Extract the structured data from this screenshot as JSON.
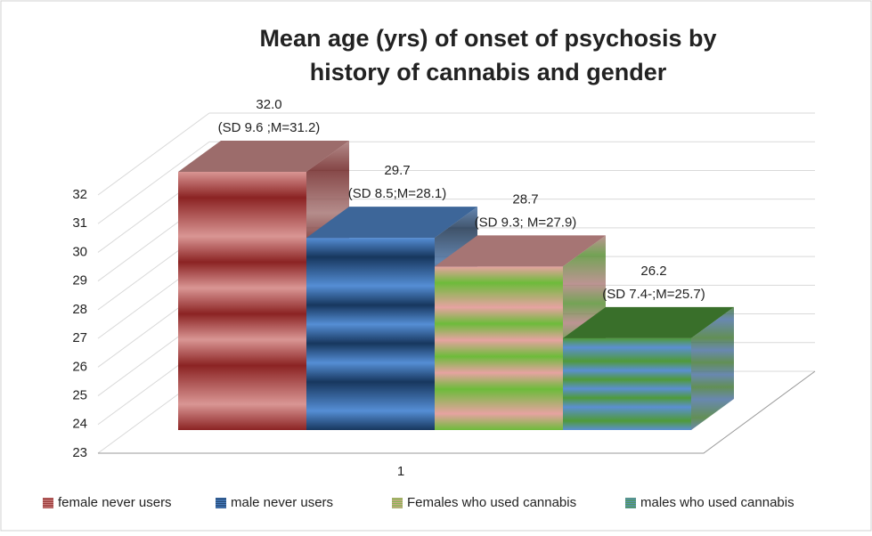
{
  "chart_data": {
    "type": "bar3d",
    "title": [
      "Mean age (yrs) of onset of psychosis by",
      "history of cannabis  and gender"
    ],
    "categories": [
      "1"
    ],
    "ylim": [
      23,
      32
    ],
    "yticks": [
      23,
      24,
      25,
      26,
      27,
      28,
      29,
      30,
      31,
      32
    ],
    "grid": true,
    "legend": "bottom",
    "series": [
      {
        "name": "female never users",
        "color": "#d99694",
        "values": [
          32.0
        ],
        "value_labels": [
          "32.0"
        ],
        "notes": [
          "(SD 9.6 ;M=31.2)"
        ]
      },
      {
        "name": "male never users",
        "color": "#558ed5",
        "values": [
          29.7
        ],
        "value_labels": [
          "29.7"
        ],
        "notes": [
          "(SD 8.5;M=28.1)"
        ]
      },
      {
        "name": "Females who used cannabis",
        "color": "#e6a3a1",
        "values": [
          28.7
        ],
        "value_labels": [
          "28.7"
        ],
        "notes": [
          "(SD 9.3; M=27.9)"
        ]
      },
      {
        "name": "males who used cannabis",
        "color": "#4f9a3a",
        "values": [
          26.2
        ],
        "value_labels": [
          "26.2"
        ],
        "notes": [
          "(SD 7.4-;M=25.7)"
        ]
      }
    ]
  }
}
